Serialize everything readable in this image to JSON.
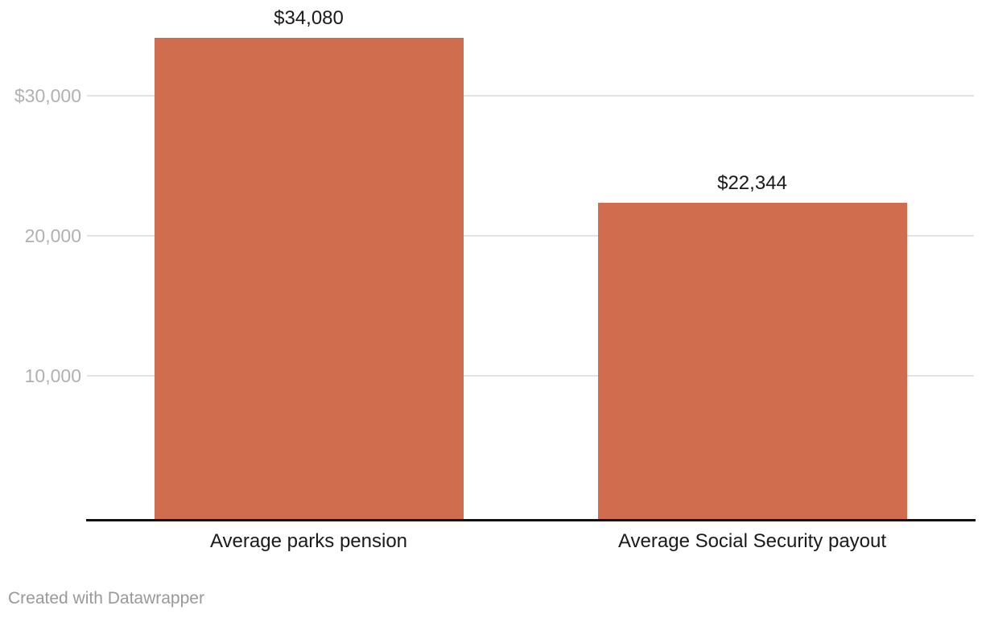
{
  "chart_data": {
    "type": "bar",
    "title": "",
    "categories": [
      "Average parks pension",
      "Average Social Security payout"
    ],
    "values": [
      34080,
      22344
    ],
    "value_labels": [
      "$34,080",
      "$22,344"
    ],
    "xlabel": "",
    "ylabel": "",
    "ylim": [
      0,
      36800
    ],
    "y_axis": {
      "grid": true,
      "ticks": [
        {
          "value": 10000,
          "label": "10,000"
        },
        {
          "value": 20000,
          "label": "20,000"
        },
        {
          "value": 30000,
          "label": "$30,000"
        }
      ]
    },
    "legend": "none",
    "bar_color": "#cf6d4e"
  },
  "colors": {
    "bar": "#cf6d4e",
    "gridline": "#e3e3e3",
    "axis_line": "#111111",
    "tick_label": "#b1b1b1",
    "data_label": "#1a1a1a",
    "category_label": "#1a1a1a",
    "credit": "#999999",
    "background": "#ffffff"
  },
  "footer": {
    "credit": "Created with Datawrapper"
  }
}
